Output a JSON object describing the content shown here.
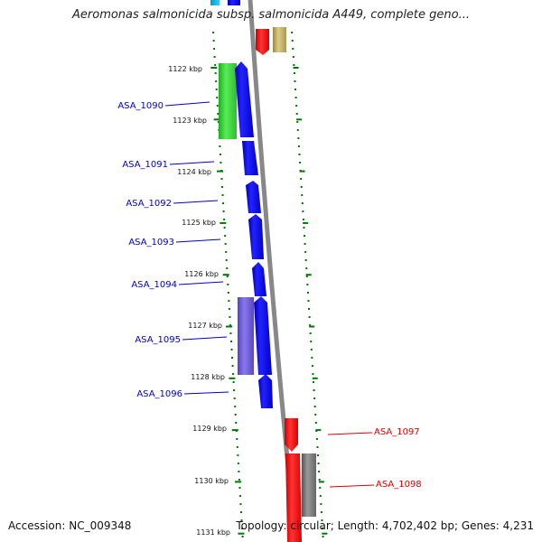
{
  "title": "Aeromonas salmonicida subsp. salmonicida A449, complete geno...",
  "footer": {
    "accession": "Accession: NC_009348",
    "topology": "Topology: circular; Length: 4,702,402 bp; Genes: 4,231"
  },
  "ticks": [
    "1122 kbp",
    "1123 kbp",
    "1124 kbp",
    "1125 kbp",
    "1126 kbp",
    "1127 kbp",
    "1128 kbp",
    "1129 kbp",
    "1130 kbp",
    "1131 kbp"
  ],
  "genes_left": [
    "ASA_1090",
    "ASA_1091",
    "ASA_1092",
    "ASA_1093",
    "ASA_1094",
    "ASA_1095",
    "ASA_1096"
  ],
  "genes_right": [
    "ASA_1097",
    "ASA_1098"
  ],
  "colors": {
    "blue_gene": "#0000ee",
    "green_gene": "#33cc33",
    "purple_gene": "#6655cc",
    "red_gene": "#ee0000",
    "gray_gene": "#777777",
    "olive_gene": "#bbaa66",
    "backbone": "#888888",
    "tick_green": "#007700",
    "label_blue": "#0000cc",
    "label_red": "#dd0000"
  }
}
